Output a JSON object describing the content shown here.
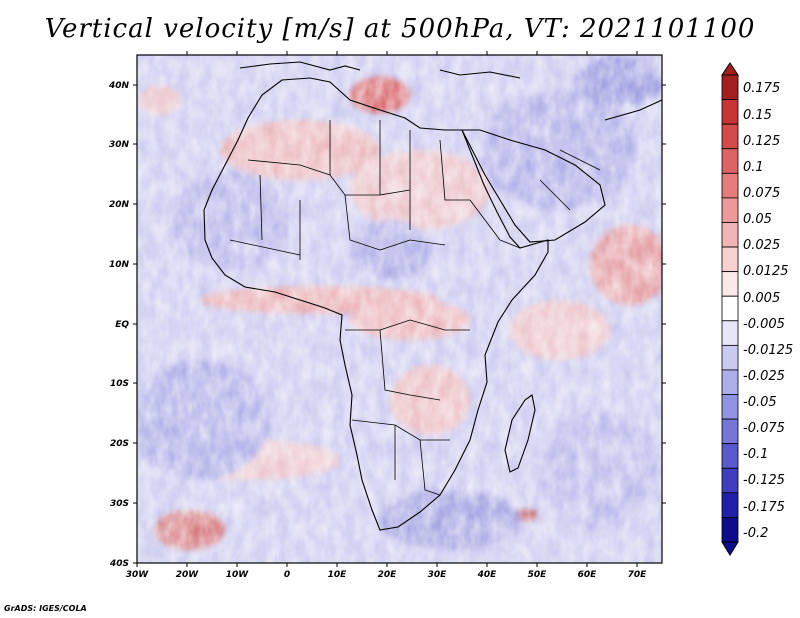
{
  "title": "Vertical velocity [m/s] at 500hPa, VT: 2021101100",
  "credit": "GrADS: IGES/COLA",
  "map": {
    "lon_range": [
      -30,
      75
    ],
    "lat_range": [
      -40,
      45
    ],
    "lon_ticks": [
      "30W",
      "20W",
      "10W",
      "0",
      "10E",
      "20E",
      "30E",
      "40E",
      "50E",
      "60E",
      "70E"
    ],
    "lat_ticks": [
      "40N",
      "30N",
      "20N",
      "10N",
      "EQ",
      "10S",
      "20S",
      "30S",
      "40S"
    ]
  },
  "colorbar": {
    "labels": [
      "0.175",
      "0.15",
      "0.125",
      "0.1",
      "0.075",
      "0.05",
      "0.025",
      "0.0125",
      "0.005",
      "-0.005",
      "-0.0125",
      "-0.025",
      "-0.05",
      "-0.075",
      "-0.1",
      "-0.125",
      "-0.175",
      "-0.2"
    ],
    "colors": [
      "#a11f1f",
      "#c53535",
      "#d24a4a",
      "#dd6464",
      "#e57d7d",
      "#ec9999",
      "#f2b5b5",
      "#f7d0d0",
      "#fbe8e8",
      "#ffffff",
      "#e6e6f8",
      "#cacaf1",
      "#adadea",
      "#9292e2",
      "#7676d8",
      "#5a5acd",
      "#3e3ebf",
      "#2121a8",
      "#0d0d8c"
    ]
  }
}
